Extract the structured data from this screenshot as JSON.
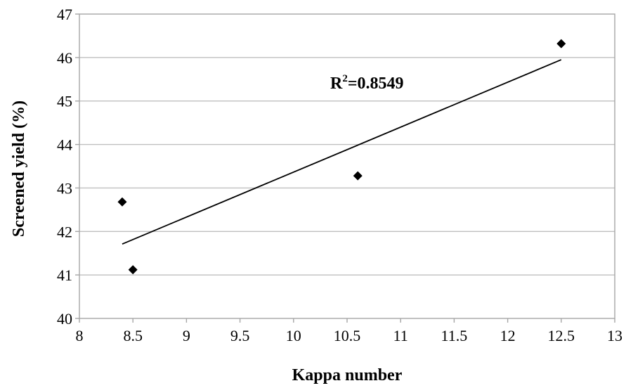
{
  "chart_data": {
    "type": "scatter",
    "title": "",
    "xlabel": "Kappa number",
    "ylabel": "Screened yield (%)",
    "xlim": [
      8,
      13
    ],
    "ylim": [
      40,
      47
    ],
    "x_ticks": [
      "8",
      "8.5",
      "9",
      "9.5",
      "10",
      "10.5",
      "11",
      "11.5",
      "12",
      "12.5",
      "13"
    ],
    "y_ticks": [
      "40",
      "41",
      "42",
      "43",
      "44",
      "45",
      "46",
      "47"
    ],
    "grid": true,
    "series": [
      {
        "marker": "diamond",
        "color": "#000000",
        "points": [
          {
            "x": 8.4,
            "y": 42.68
          },
          {
            "x": 8.5,
            "y": 41.12
          },
          {
            "x": 10.6,
            "y": 43.28
          },
          {
            "x": 12.5,
            "y": 46.32
          }
        ]
      }
    ],
    "trendline": {
      "type": "linear",
      "x": [
        8.4,
        12.5
      ],
      "y": [
        41.71,
        45.95
      ],
      "color": "#000000"
    },
    "annotation": {
      "base": "R",
      "superscript": "2",
      "rest": "=0.8549"
    }
  }
}
